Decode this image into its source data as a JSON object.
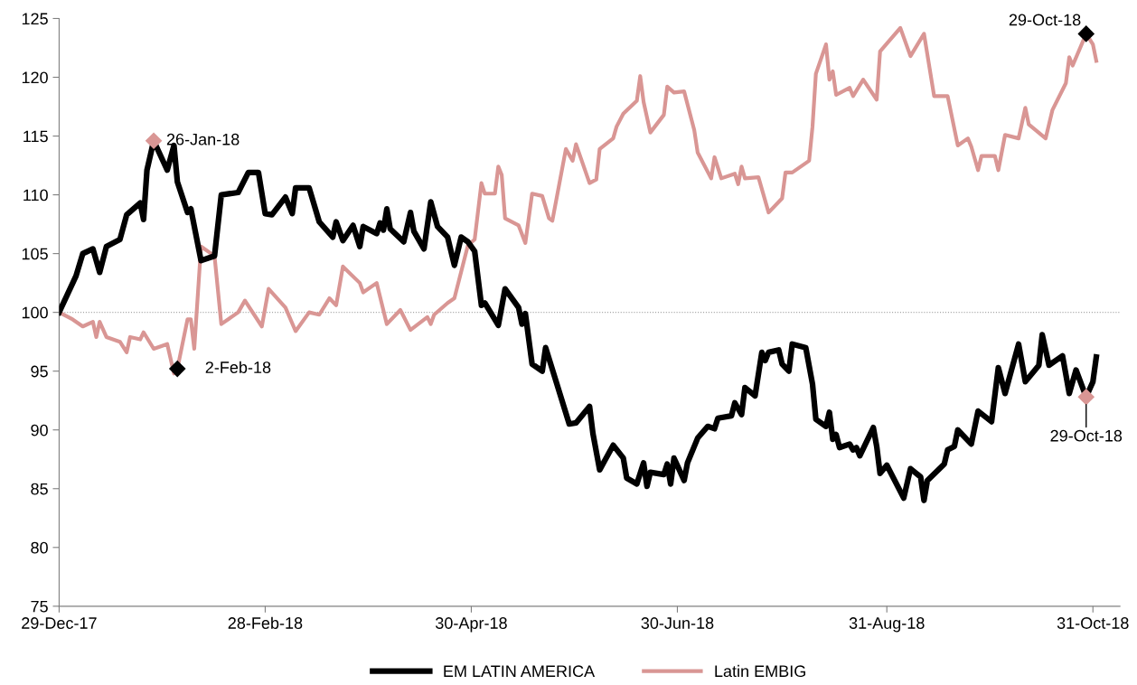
{
  "chart_data": {
    "type": "line",
    "xlim": [
      "2017-12-29",
      "2018-11-08"
    ],
    "xticks": [
      {
        "value": "2017-12-29",
        "label": "29-Dec-17"
      },
      {
        "value": "2018-02-28",
        "label": "28-Feb-18"
      },
      {
        "value": "2018-04-30",
        "label": "30-Apr-18"
      },
      {
        "value": "2018-06-30",
        "label": "30-Jun-18"
      },
      {
        "value": "2018-08-31",
        "label": "31-Aug-18"
      },
      {
        "value": "2018-10-31",
        "label": "31-Oct-18"
      }
    ],
    "ylim": [
      75,
      125
    ],
    "yticks": [
      75,
      80,
      85,
      90,
      95,
      100,
      105,
      110,
      115,
      120,
      125
    ],
    "grid": false,
    "legend": "bottom",
    "ref_lines": [
      {
        "axis": "y",
        "value": 100,
        "color": "#a6a6a6",
        "line_style": "dotted"
      }
    ],
    "series": [
      {
        "name": "EM LATIN AMERICA",
        "color": "#000000",
        "x": [
          "2017-12-29",
          "2018-01-03",
          "2018-01-05",
          "2018-01-08",
          "2018-01-10",
          "2018-01-12",
          "2018-01-16",
          "2018-01-18",
          "2018-01-22",
          "2018-01-23",
          "2018-01-24",
          "2018-01-26",
          "2018-01-30",
          "2018-02-01",
          "2018-02-02",
          "2018-02-05",
          "2018-02-06",
          "2018-02-09",
          "2018-02-12",
          "2018-02-13",
          "2018-02-15",
          "2018-02-20",
          "2018-02-23",
          "2018-02-26",
          "2018-02-28",
          "2018-03-02",
          "2018-03-06",
          "2018-03-08",
          "2018-03-09",
          "2018-03-13",
          "2018-03-16",
          "2018-03-20",
          "2018-03-21",
          "2018-03-23",
          "2018-03-26",
          "2018-03-28",
          "2018-03-29",
          "2018-04-02",
          "2018-04-03",
          "2018-04-04",
          "2018-04-05",
          "2018-04-06",
          "2018-04-10",
          "2018-04-12",
          "2018-04-13",
          "2018-04-16",
          "2018-04-18",
          "2018-04-20",
          "2018-04-23",
          "2018-04-25",
          "2018-04-27",
          "2018-04-29",
          "2018-05-01",
          "2018-05-03",
          "2018-05-04",
          "2018-05-08",
          "2018-05-10",
          "2018-05-14",
          "2018-05-15",
          "2018-05-16",
          "2018-05-18",
          "2018-05-21",
          "2018-05-22",
          "2018-05-29",
          "2018-05-31",
          "2018-06-04",
          "2018-06-05",
          "2018-06-07",
          "2018-06-11",
          "2018-06-14",
          "2018-06-15",
          "2018-06-18",
          "2018-06-20",
          "2018-06-21",
          "2018-06-22",
          "2018-06-26",
          "2018-06-27",
          "2018-06-28",
          "2018-06-29",
          "2018-07-02",
          "2018-07-03",
          "2018-07-06",
          "2018-07-09",
          "2018-07-11",
          "2018-07-12",
          "2018-07-16",
          "2018-07-17",
          "2018-07-19",
          "2018-07-20",
          "2018-07-23",
          "2018-07-25",
          "2018-07-26",
          "2018-07-27",
          "2018-07-30",
          "2018-07-31",
          "2018-08-02",
          "2018-08-03",
          "2018-08-07",
          "2018-08-09",
          "2018-08-10",
          "2018-08-13",
          "2018-08-14",
          "2018-08-15",
          "2018-08-16",
          "2018-08-17",
          "2018-08-20",
          "2018-08-21",
          "2018-08-22",
          "2018-08-23",
          "2018-08-27",
          "2018-08-28",
          "2018-08-29",
          "2018-08-31",
          "2018-09-05",
          "2018-09-07",
          "2018-09-10",
          "2018-09-11",
          "2018-09-12",
          "2018-09-17",
          "2018-09-18",
          "2018-09-20",
          "2018-09-21",
          "2018-09-25",
          "2018-09-27",
          "2018-10-01",
          "2018-10-03",
          "2018-10-05",
          "2018-10-09",
          "2018-10-11",
          "2018-10-15",
          "2018-10-16",
          "2018-10-18",
          "2018-10-22",
          "2018-10-24",
          "2018-10-26",
          "2018-10-29",
          "2018-10-31",
          "2018-11-01"
        ],
        "values": [
          100,
          103.1,
          105.0,
          105.4,
          103.4,
          105.6,
          106.2,
          108.3,
          109.3,
          107.9,
          112.1,
          114.6,
          112.1,
          114.2,
          111.1,
          108.5,
          108.8,
          104.4,
          104.7,
          104.8,
          110.0,
          110.2,
          111.9,
          111.9,
          108.4,
          108.3,
          109.8,
          108.4,
          110.6,
          110.6,
          107.7,
          106.4,
          107.7,
          106.1,
          107.4,
          105.6,
          107.3,
          106.7,
          107.6,
          107.0,
          108.8,
          107.1,
          106.0,
          108.5,
          106.9,
          105.4,
          109.4,
          107.3,
          106.4,
          104.0,
          106.4,
          106.0,
          105.2,
          100.6,
          100.8,
          98.9,
          102.0,
          100.4,
          99.0,
          99.9,
          95.6,
          95.0,
          97.0,
          90.5,
          90.6,
          92.0,
          89.7,
          86.6,
          88.7,
          87.6,
          85.9,
          85.4,
          87.2,
          85.2,
          86.4,
          86.2,
          87.1,
          85.4,
          87.6,
          85.7,
          87.2,
          89.3,
          90.3,
          90.1,
          91.0,
          91.2,
          92.3,
          91.3,
          93.6,
          92.9,
          96.6,
          95.9,
          96.6,
          96.8,
          95.6,
          95.0,
          97.3,
          97.0,
          93.9,
          90.9,
          90.3,
          91.5,
          89.2,
          89.6,
          88.5,
          88.8,
          88.3,
          88.5,
          87.8,
          90.2,
          88.6,
          86.3,
          87.0,
          84.2,
          86.7,
          86.0,
          84.0,
          85.7,
          87.1,
          88.3,
          88.6,
          90.0,
          88.8,
          91.6,
          90.7,
          95.3,
          93.1,
          97.3,
          94.1,
          95.5,
          98.1,
          95.5,
          96.3,
          93.1,
          95.1,
          92.8,
          94.1,
          96.2
        ]
      },
      {
        "name": "Latin EMBIG",
        "color": "#d99694",
        "x": [
          "2017-12-29",
          "2018-01-02",
          "2018-01-05",
          "2018-01-08",
          "2018-01-09",
          "2018-01-10",
          "2018-01-12",
          "2018-01-16",
          "2018-01-18",
          "2018-01-19",
          "2018-01-22",
          "2018-01-23",
          "2018-01-26",
          "2018-01-30",
          "2018-02-01",
          "2018-02-02",
          "2018-02-05",
          "2018-02-06",
          "2018-02-07",
          "2018-02-09",
          "2018-02-12",
          "2018-02-13",
          "2018-02-15",
          "2018-02-20",
          "2018-02-22",
          "2018-02-27",
          "2018-03-01",
          "2018-03-06",
          "2018-03-09",
          "2018-03-13",
          "2018-03-16",
          "2018-03-19",
          "2018-03-21",
          "2018-03-23",
          "2018-03-28",
          "2018-03-29",
          "2018-04-02",
          "2018-04-05",
          "2018-04-09",
          "2018-04-12",
          "2018-04-17",
          "2018-04-18",
          "2018-04-19",
          "2018-04-23",
          "2018-04-25",
          "2018-04-29",
          "2018-05-01",
          "2018-05-03",
          "2018-05-04",
          "2018-05-07",
          "2018-05-08",
          "2018-05-09",
          "2018-05-10",
          "2018-05-14",
          "2018-05-16",
          "2018-05-18",
          "2018-05-21",
          "2018-05-23",
          "2018-05-24",
          "2018-05-28",
          "2018-05-30",
          "2018-05-31",
          "2018-06-04",
          "2018-06-06",
          "2018-06-07",
          "2018-06-11",
          "2018-06-12",
          "2018-06-14",
          "2018-06-18",
          "2018-06-19",
          "2018-06-20",
          "2018-06-22",
          "2018-06-26",
          "2018-06-27",
          "2018-06-29",
          "2018-07-02",
          "2018-07-05",
          "2018-07-06",
          "2018-07-10",
          "2018-07-11",
          "2018-07-13",
          "2018-07-17",
          "2018-07-18",
          "2018-07-19",
          "2018-07-20",
          "2018-07-24",
          "2018-07-27",
          "2018-07-31",
          "2018-08-01",
          "2018-08-03",
          "2018-08-08",
          "2018-08-09",
          "2018-08-10",
          "2018-08-13",
          "2018-08-14",
          "2018-08-15",
          "2018-08-16",
          "2018-08-20",
          "2018-08-21",
          "2018-08-24",
          "2018-08-28",
          "2018-08-29",
          "2018-09-04",
          "2018-09-07",
          "2018-09-11",
          "2018-09-14",
          "2018-09-18",
          "2018-09-21",
          "2018-09-24",
          "2018-09-25",
          "2018-09-27",
          "2018-09-28",
          "2018-10-02",
          "2018-10-03",
          "2018-10-05",
          "2018-10-09",
          "2018-10-11",
          "2018-10-12",
          "2018-10-17",
          "2018-10-19",
          "2018-10-23",
          "2018-10-24",
          "2018-10-25",
          "2018-10-29",
          "2018-10-31",
          "2018-11-01"
        ],
        "values": [
          100,
          99.4,
          98.8,
          99.2,
          97.9,
          99.2,
          97.9,
          97.5,
          96.6,
          97.9,
          97.7,
          98.3,
          96.9,
          97.3,
          94.8,
          95.2,
          99.4,
          99.4,
          96.9,
          105.6,
          105.0,
          104.8,
          99.0,
          100.0,
          101.0,
          98.8,
          102.0,
          100.4,
          98.4,
          100.0,
          99.8,
          101.2,
          100.6,
          103.9,
          102.5,
          101.7,
          102.5,
          99.0,
          100.2,
          98.5,
          99.6,
          99.0,
          99.8,
          100.8,
          101.2,
          105.7,
          106.2,
          111.0,
          110.1,
          110.1,
          112.4,
          111.7,
          108.0,
          107.4,
          105.9,
          110.1,
          109.9,
          108.0,
          107.8,
          113.9,
          112.9,
          114.3,
          111.0,
          111.3,
          113.9,
          114.8,
          115.8,
          116.9,
          118.0,
          120.1,
          117.9,
          115.3,
          116.8,
          119.2,
          118.7,
          118.8,
          115.5,
          113.6,
          111.4,
          113.2,
          111.4,
          111.8,
          110.9,
          112.4,
          111.4,
          111.5,
          108.5,
          109.7,
          111.9,
          111.9,
          112.9,
          115.8,
          120.3,
          122.8,
          119.8,
          120.5,
          118.5,
          119.1,
          118.4,
          119.8,
          118.1,
          122.2,
          124.2,
          121.8,
          123.7,
          118.4,
          118.4,
          114.2,
          114.8,
          114.1,
          112.1,
          113.3,
          113.3,
          112.1,
          115.1,
          114.8,
          117.4,
          116.0,
          114.8,
          117.2,
          119.5,
          121.7,
          121.0,
          123.7,
          122.8,
          121.4
        ]
      },
      {
        "color": "#d99694",
        "type": "scatter",
        "marker": "diamond",
        "x": [
          "2018-01-26",
          "2018-10-29"
        ],
        "values": [
          114.6,
          92.8
        ]
      },
      {
        "color": "#000000",
        "type": "scatter",
        "marker": "diamond",
        "x": [
          "2018-02-02",
          "2018-10-29"
        ],
        "values": [
          95.2,
          123.7
        ]
      }
    ],
    "annotations": [
      {
        "text": "26-Jan-18",
        "x": "2018-01-26",
        "y": 114.6
      },
      {
        "text": "2-Feb-18",
        "x": "2018-02-02",
        "y": 95.2
      },
      {
        "text": "29-Oct-18",
        "x": "2018-10-29",
        "y": 123.7
      },
      {
        "text": "29-Oct-18",
        "x": "2018-10-29",
        "y": 92.8
      }
    ]
  }
}
